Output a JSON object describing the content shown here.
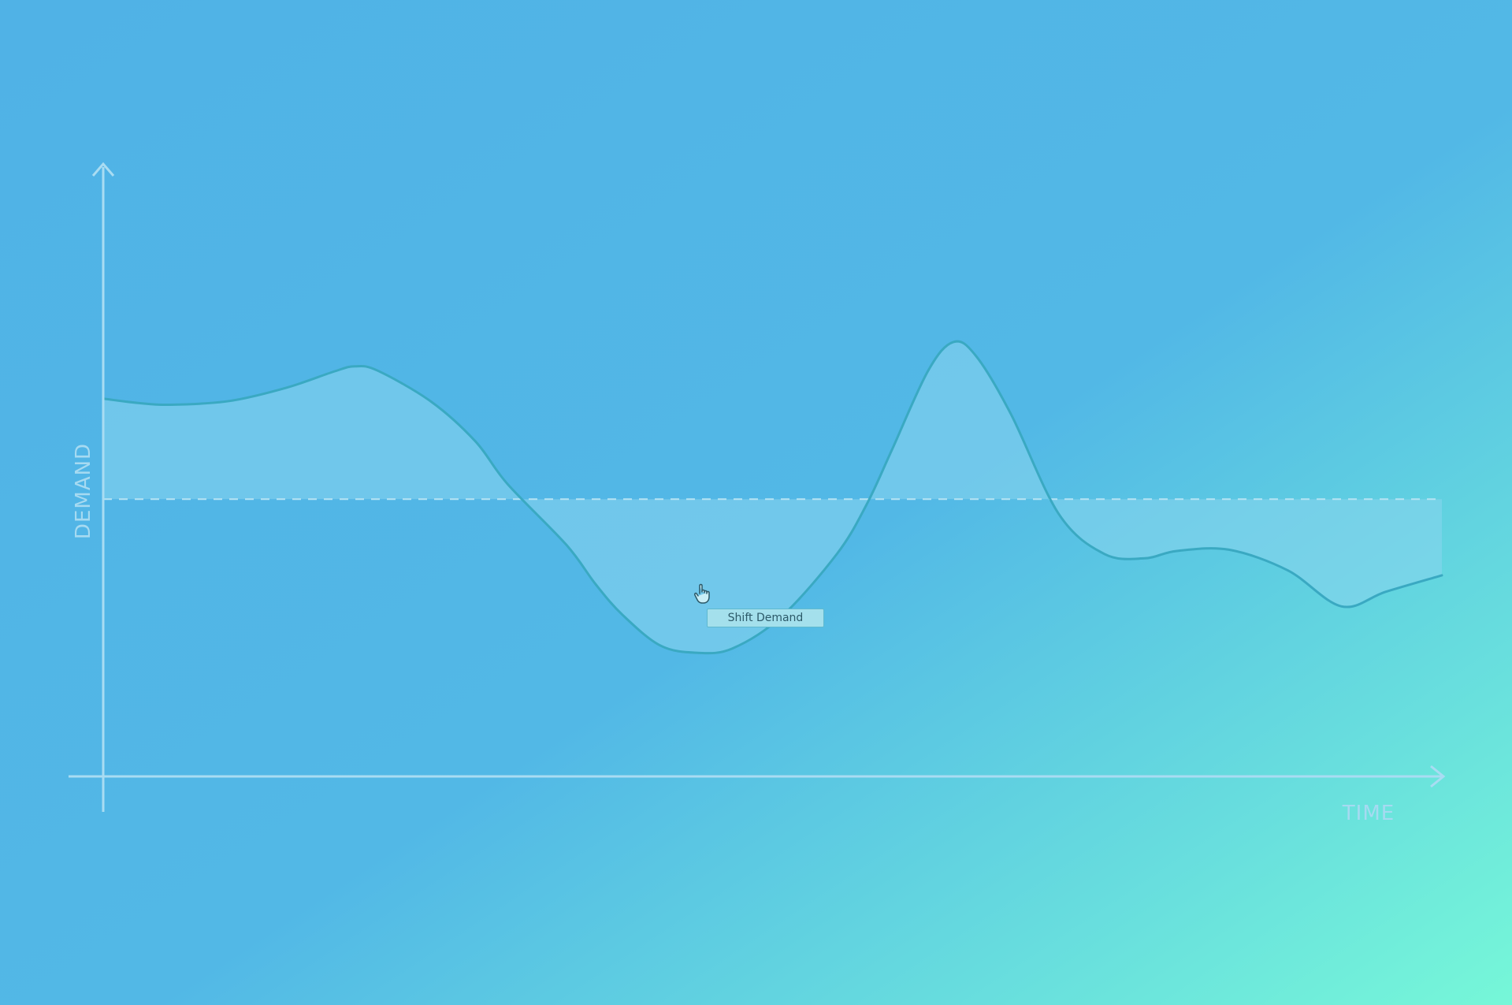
{
  "colors": {
    "background_start": "#50b2e6",
    "background_end": "#76f7d8",
    "axis": "#a9dcf2",
    "axis_label": "#a6daf1",
    "curve_stroke": "#3aa9c2",
    "area_fill": "#8ad6ee",
    "baseline": "#b7e4f3"
  },
  "chart_data": {
    "type": "area",
    "xlabel": "TIME",
    "ylabel": "DEMAND",
    "xlim": [
      0,
      100
    ],
    "ylim": [
      0,
      100
    ],
    "grid": false,
    "baseline": {
      "value": 45.5,
      "style": "dashed"
    },
    "series": [
      {
        "x": [
          0,
          2.6,
          5,
          9.4,
          13.7,
          17.3,
          18.8,
          20.5,
          24.5,
          27.8,
          30.2,
          34.6,
          36.8,
          38.8,
          41.6,
          44.3,
          47,
          50.7,
          54.8,
          57,
          58.9,
          61.6,
          63.5,
          65.2,
          67.8,
          71.4,
          74.8,
          77.8,
          80.2,
          84.1,
          88.5,
          92.5,
          95.8,
          100
        ],
        "y": [
          62,
          61.3,
          61,
          61.6,
          63.8,
          66.5,
          67.3,
          66.6,
          61.5,
          55,
          48,
          38,
          31.5,
          26.5,
          21.5,
          20.3,
          21,
          26.3,
          36.5,
          44.5,
          53.5,
          66.5,
          71.3,
          69,
          59.5,
          43,
          36.5,
          35.8,
          37,
          37.2,
          33.8,
          27.9,
          30.3,
          33
        ]
      }
    ],
    "annotations": [
      {
        "text": "Shift Demand",
        "x": 49.2,
        "y": 26.6
      }
    ]
  },
  "icons": {
    "cursor": "hand-pointer-icon"
  }
}
